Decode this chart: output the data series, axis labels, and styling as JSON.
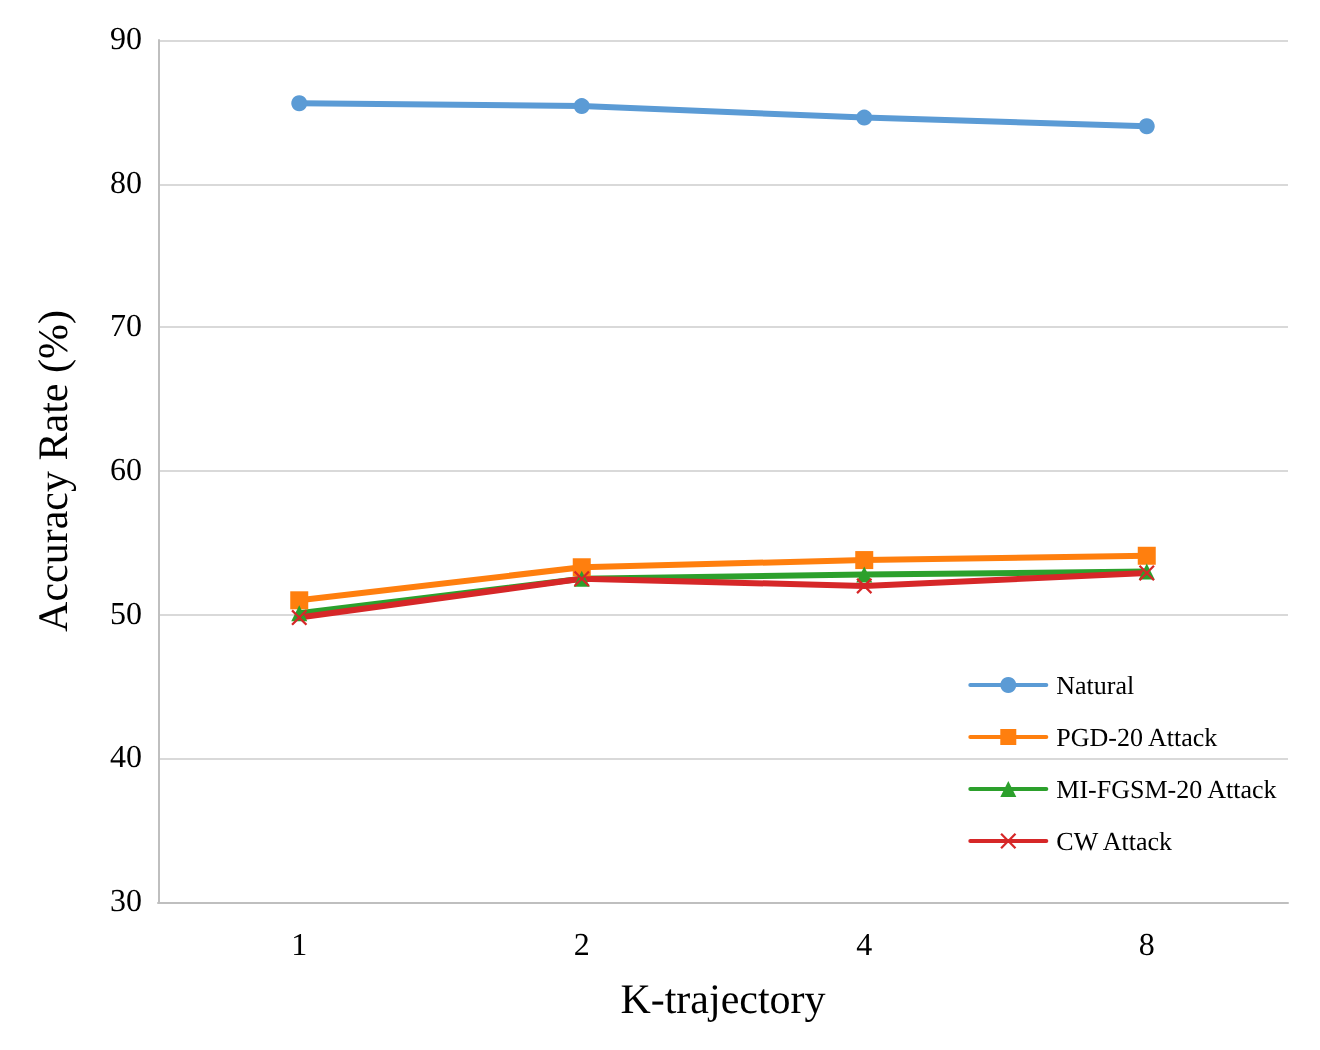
{
  "chart_data": {
    "type": "line",
    "xlabel": "K-trajectory",
    "ylabel": "Accuracy Rate (%)",
    "categories": [
      "1",
      "2",
      "4",
      "8"
    ],
    "ylim": [
      30,
      90
    ],
    "yticks": [
      30,
      40,
      50,
      60,
      70,
      80,
      90
    ],
    "grid": "y",
    "legend": "bottom right",
    "series": [
      {
        "name": "Natural",
        "color": "#5b9bd5",
        "marker": "circle",
        "values": [
          85.6,
          85.4,
          84.6,
          84.0
        ]
      },
      {
        "name": "PGD-20 Attack",
        "color": "#ff7f0e",
        "marker": "square",
        "values": [
          51.0,
          53.3,
          53.8,
          54.1
        ]
      },
      {
        "name": "MI-FGSM-20 Attack",
        "color": "#2ca02c",
        "marker": "triangle",
        "values": [
          50.1,
          52.5,
          52.8,
          53.0
        ]
      },
      {
        "name": "CW Attack",
        "color": "#d62728",
        "marker": "cross",
        "values": [
          49.8,
          52.5,
          52.0,
          52.9
        ]
      }
    ]
  }
}
